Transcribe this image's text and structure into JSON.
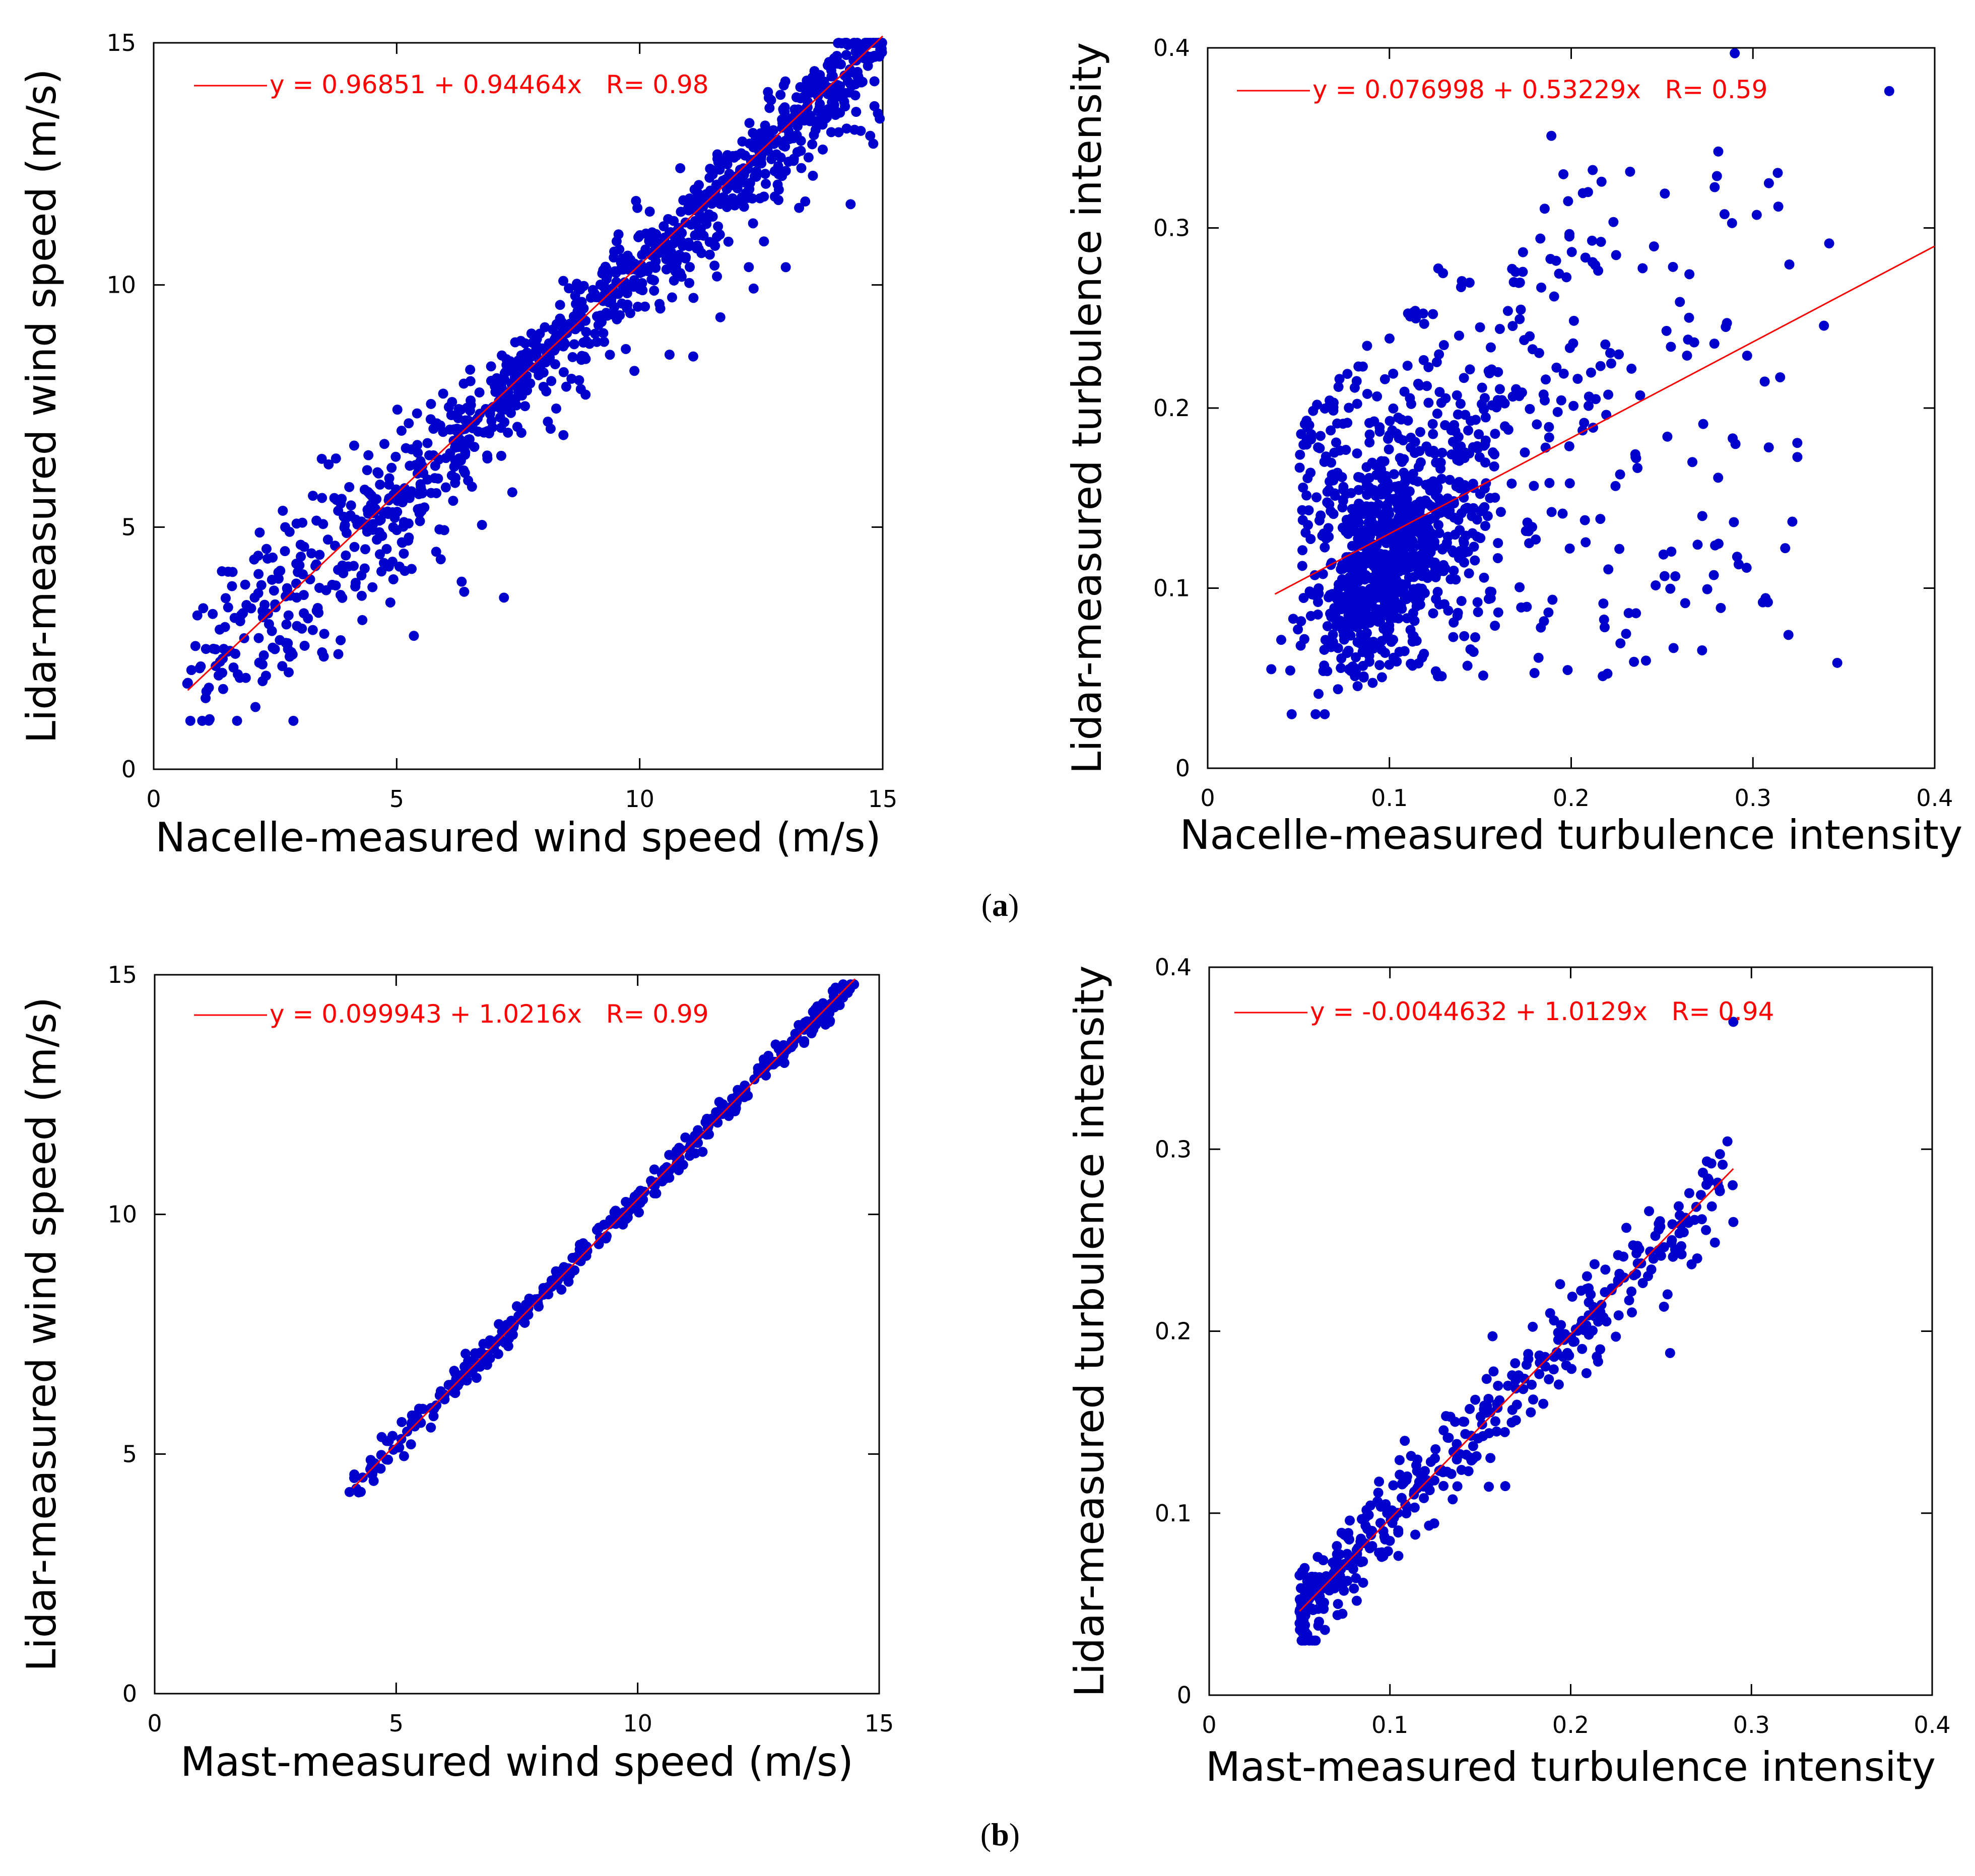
{
  "figure": {
    "captions": {
      "a": "a",
      "b": "b"
    }
  },
  "chart_data": [
    {
      "id": "a-left",
      "type": "scatter",
      "xlabel": "Nacelle-measured wind speed (m/s)",
      "ylabel": "Lidar-measured wind speed (m/s)",
      "xlim": [
        0,
        15
      ],
      "ylim": [
        0,
        15
      ],
      "xticks": [
        0,
        5,
        10,
        15
      ],
      "yticks": [
        0,
        5,
        10,
        15
      ],
      "xtick_labels": [
        "0",
        "5",
        "10",
        "15"
      ],
      "ytick_labels": [
        "0",
        "5",
        "10",
        "15"
      ],
      "legend": "y = 0.96851 + 0.94464x   R= 0.98",
      "fit": {
        "intercept": 0.96851,
        "slope": 0.94464,
        "r": 0.98,
        "x_range": [
          0.7,
          15
        ]
      },
      "points": {
        "n": 1100,
        "x_range": [
          0.6,
          15
        ],
        "y_range": [
          1.0,
          15
        ],
        "description": "dense scatter along fit line"
      },
      "point_color": "#0000cc",
      "fit_color": "#ff0000"
    },
    {
      "id": "a-right",
      "type": "scatter",
      "xlabel": "Nacelle-measured turbulence intensity",
      "ylabel": "Lidar-measured turbulence intensity",
      "xlim": [
        0,
        0.4
      ],
      "ylim": [
        0,
        0.4
      ],
      "xticks": [
        0,
        0.1,
        0.2,
        0.3,
        0.4
      ],
      "yticks": [
        0,
        0.1,
        0.2,
        0.3,
        0.4
      ],
      "xtick_labels": [
        "0",
        "0.1",
        "0.2",
        "0.3",
        "0.4"
      ],
      "ytick_labels": [
        "0",
        "0.1",
        "0.2",
        "0.3",
        "0.4"
      ],
      "legend": "y = 0.076998 + 0.53229x   R= 0.59",
      "fit": {
        "intercept": 0.076998,
        "slope": 0.53229,
        "r": 0.59,
        "x_range": [
          0.037,
          0.4
        ]
      },
      "points": {
        "n": 1200,
        "x_range": [
          0.036,
          0.38
        ],
        "y_range": [
          0.03,
          0.4
        ],
        "description": "widely dispersed cloud centered near 0.1"
      },
      "point_color": "#0000cc",
      "fit_color": "#ff0000"
    },
    {
      "id": "b-left",
      "type": "scatter",
      "xlabel": "Mast-measured wind speed (m/s)",
      "ylabel": "Lidar-measured wind speed (m/s)",
      "xlim": [
        0,
        15
      ],
      "ylim": [
        0,
        15
      ],
      "xticks": [
        0,
        5,
        10,
        15
      ],
      "yticks": [
        0,
        5,
        10,
        15
      ],
      "xtick_labels": [
        "0",
        "5",
        "10",
        "15"
      ],
      "ytick_labels": [
        "0",
        "5",
        "10",
        "15"
      ],
      "legend": "y = 0.099943 + 1.0216x   R= 0.99",
      "fit": {
        "intercept": 0.099943,
        "slope": 1.0216,
        "r": 0.99,
        "x_range": [
          4.1,
          14.5
        ]
      },
      "points": {
        "n": 380,
        "x_range": [
          4.0,
          14.5
        ],
        "y_range": [
          4.2,
          14.8
        ],
        "description": "tight scatter along fit line"
      },
      "point_color": "#0000cc",
      "fit_color": "#ff0000"
    },
    {
      "id": "b-right",
      "type": "scatter",
      "xlabel": "Mast-measured turbulence intensity",
      "ylabel": "Lidar-measured turbulence intensity",
      "xlim": [
        0,
        0.4
      ],
      "ylim": [
        0,
        0.4
      ],
      "xticks": [
        0,
        0.1,
        0.2,
        0.3,
        0.4
      ],
      "yticks": [
        0,
        0.1,
        0.2,
        0.3,
        0.4
      ],
      "xtick_labels": [
        "0",
        "0.1",
        "0.2",
        "0.3",
        "0.4"
      ],
      "ytick_labels": [
        "0",
        "0.1",
        "0.2",
        "0.3",
        "0.4"
      ],
      "legend": "y = -0.0044632 + 1.0129x   R= 0.94",
      "fit": {
        "intercept": -0.0044632,
        "slope": 1.0129,
        "r": 0.94,
        "x_range": [
          0.05,
          0.29
        ]
      },
      "points": {
        "n": 420,
        "x_range": [
          0.05,
          0.29
        ],
        "y_range": [
          0.03,
          0.37
        ],
        "description": "scatter along fit line, densest 0.07-0.15"
      },
      "point_color": "#0000cc",
      "fit_color": "#ff0000"
    }
  ]
}
